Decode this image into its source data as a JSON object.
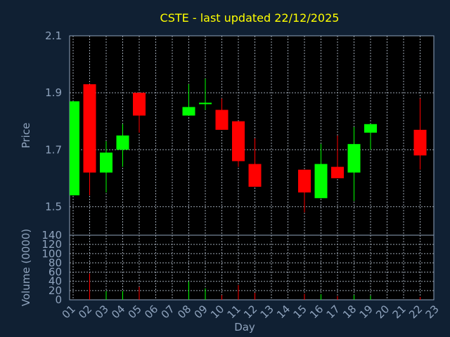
{
  "chart_data": {
    "type": "candlestick",
    "title": "CSTE - last updated 22/12/2025",
    "xlabel": "Day",
    "days": [
      "01",
      "02",
      "03",
      "04",
      "05",
      "06",
      "07",
      "08",
      "09",
      "10",
      "11",
      "12",
      "13",
      "14",
      "15",
      "16",
      "17",
      "18",
      "19",
      "20",
      "21",
      "22",
      "23"
    ],
    "price_panel": {
      "ylabel": "Price",
      "ylim": [
        1.4,
        2.1
      ],
      "yticks": [
        "2.1",
        "1.9",
        "1.7",
        "1.5"
      ],
      "grid": true
    },
    "volume_panel": {
      "ylabel": "Volume (0000)",
      "ylim": [
        0,
        140
      ],
      "yticks": [
        "140",
        "120",
        "100",
        "80",
        "60",
        "40",
        "20",
        "0"
      ],
      "grid": true
    },
    "colors": {
      "up": "#00ff00",
      "down": "#ff0000",
      "title": "#ffff00",
      "axis": "#8fa3bd",
      "background": "#102033",
      "plot": "#000000"
    },
    "candles": [
      {
        "day": "01",
        "open": 1.54,
        "high": 1.87,
        "low": 1.54,
        "close": 1.87,
        "volume": 0
      },
      {
        "day": "02",
        "open": 1.93,
        "high": 1.93,
        "low": 1.54,
        "close": 1.62,
        "volume": 57
      },
      {
        "day": "03",
        "open": 1.62,
        "high": 1.73,
        "low": 1.55,
        "close": 1.69,
        "volume": 19
      },
      {
        "day": "04",
        "open": 1.7,
        "high": 1.79,
        "low": 1.64,
        "close": 1.75,
        "volume": 19
      },
      {
        "day": "05",
        "open": 1.9,
        "high": 1.9,
        "low": 1.76,
        "close": 1.82,
        "volume": 28
      },
      {
        "day": "08",
        "open": 1.82,
        "high": 1.93,
        "low": 1.82,
        "close": 1.85,
        "volume": 40
      },
      {
        "day": "09",
        "open": 1.86,
        "high": 1.95,
        "low": 1.84,
        "close": 1.865,
        "volume": 25
      },
      {
        "day": "10",
        "open": 1.84,
        "high": 1.88,
        "low": 1.77,
        "close": 1.77,
        "volume": 10
      },
      {
        "day": "11",
        "open": 1.8,
        "high": 1.8,
        "low": 1.64,
        "close": 1.66,
        "volume": 32
      },
      {
        "day": "12",
        "open": 1.65,
        "high": 1.74,
        "low": 1.57,
        "close": 1.57,
        "volume": 15
      },
      {
        "day": "15",
        "open": 1.63,
        "high": 1.63,
        "low": 1.48,
        "close": 1.55,
        "volume": 13
      },
      {
        "day": "16",
        "open": 1.53,
        "high": 1.72,
        "low": 1.53,
        "close": 1.65,
        "volume": 12
      },
      {
        "day": "17",
        "open": 1.64,
        "high": 1.75,
        "low": 1.6,
        "close": 1.6,
        "volume": 8
      },
      {
        "day": "18",
        "open": 1.62,
        "high": 1.78,
        "low": 1.52,
        "close": 1.72,
        "volume": 10
      },
      {
        "day": "19",
        "open": 1.76,
        "high": 1.79,
        "low": 1.7,
        "close": 1.79,
        "volume": 9
      },
      {
        "day": "22",
        "open": 1.77,
        "high": 1.88,
        "low": 1.63,
        "close": 1.68,
        "volume": 6
      }
    ]
  }
}
